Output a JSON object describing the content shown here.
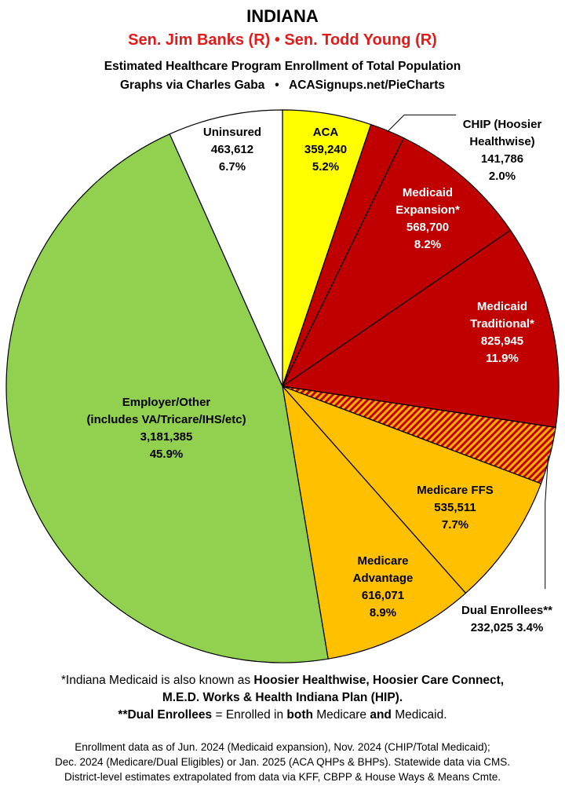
{
  "header": {
    "title": "INDIANA",
    "subtitle": "Sen. Jim Banks (R) • Sen. Todd Young (R)",
    "description": "Estimated Healthcare Program Enrollment of Total Population",
    "credit": "Graphs via Charles Gaba   •   ACASignups.net/PieCharts"
  },
  "chart_data": {
    "type": "pie",
    "start": "12 o'clock",
    "direction": "clockwise",
    "slices": [
      {
        "label": [
          "ACA"
        ],
        "value": 359240,
        "value_text": "359,240",
        "pct": "5.2%",
        "color": "#ffff00",
        "text_color": "#000000"
      },
      {
        "label": [
          "CHIP (Hoosier",
          "Healthwise)"
        ],
        "value": 141786,
        "value_text": "141,786",
        "pct": "2.0%",
        "color": "#c00000",
        "text_color": "#000000"
      },
      {
        "label": [
          "Medicaid",
          "Expansion*"
        ],
        "value": 568700,
        "value_text": "568,700",
        "pct": "8.2%",
        "color": "#c00000",
        "text_color": "#ffffff"
      },
      {
        "label": [
          "Medicaid",
          "Traditional*"
        ],
        "value": 825945,
        "value_text": "825,945",
        "pct": "11.9%",
        "color": "#c00000",
        "text_color": "#ffffff"
      },
      {
        "label": [
          "Dual Enrollees**"
        ],
        "value": 232025,
        "value_text": "232,025",
        "pct": "3.4%",
        "color": "#c00000",
        "hatch": "#ffb000",
        "text_color": "#000000"
      },
      {
        "label": [
          "Medicare FFS"
        ],
        "value": 535511,
        "value_text": "535,511",
        "pct": "7.7%",
        "color": "#ffc000",
        "text_color": "#000000"
      },
      {
        "label": [
          "Medicare",
          "Advantage"
        ],
        "value": 616071,
        "value_text": "616,071",
        "pct": "8.9%",
        "color": "#ffc000",
        "text_color": "#000000"
      },
      {
        "label": [
          "Employer/Other",
          "(includes VA/Tricare/IHS/etc)"
        ],
        "value": 3181385,
        "value_text": "3,181,385",
        "pct": "45.9%",
        "color": "#92d050",
        "text_color": "#000000"
      },
      {
        "label": [
          "Uninsured"
        ],
        "value": 463612,
        "value_text": "463,612",
        "pct": "6.7%",
        "color": "#ffffff",
        "text_color": "#000000"
      }
    ]
  },
  "footer": {
    "note1_a": "*Indiana Medicaid is also known as ",
    "note1_b": "Hoosier Healthwise, Hoosier Care Connect,",
    "note1_c": "M.E.D. Works & Health Indiana Plan (HIP).",
    "note2_a": "**Dual Enrollees",
    "note2_b": " = Enrolled in ",
    "note2_c": "both",
    "note2_d": " Medicare ",
    "note2_e": "and",
    "note2_f": " Medicaid.",
    "source_1": "Enrollment data as of Jun. 2024 (Medicaid expansion), Nov. 2024 (CHIP/Total Medicaid);",
    "source_2": "Dec. 2024 (Medicare/Dual Eligibles) or Jan. 2025 (ACA QHPs & BHPs). Statewide data via CMS.",
    "source_3": "District-level estimates extrapolated from data via KFF, CBPP & House Ways & Means Cmte."
  }
}
